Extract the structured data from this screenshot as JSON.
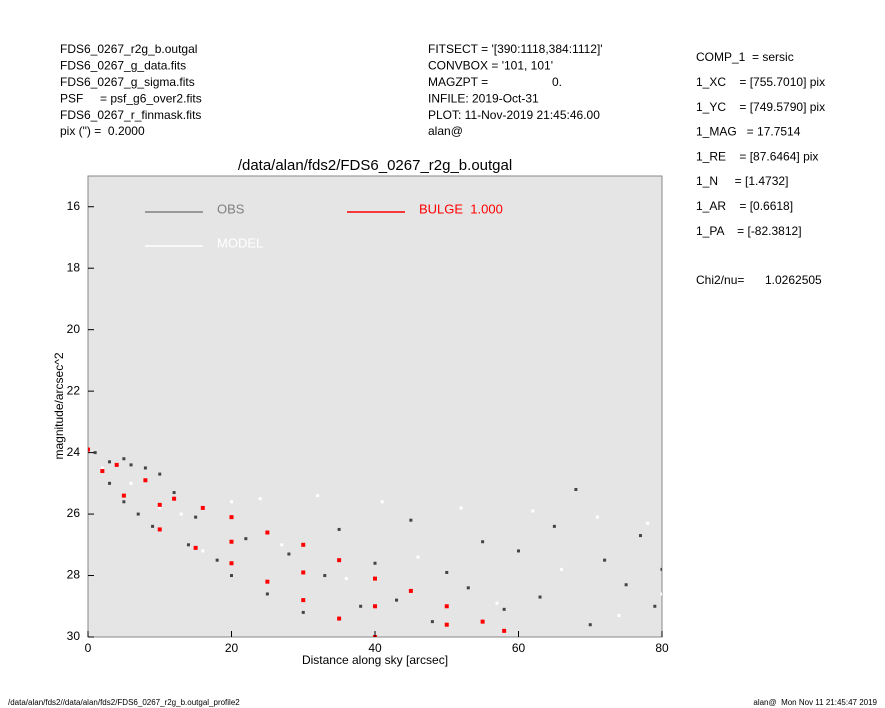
{
  "chart_data": {
    "type": "scatter",
    "title": "/data/alan/fds2/FDS6_0267_r2g_b.outgal",
    "xlabel": "Distance along sky [arcsec]",
    "ylabel": "magnitude/arcsec^2",
    "header_left": [
      "FDS6_0267_r2g_b.outgal",
      "FDS6_0267_g_data.fits",
      "FDS6_0267_g_sigma.fits",
      "PSF     = psf_g6_over2.fits",
      "FDS6_0267_r_finmask.fits",
      "pix (\") =  0.2000"
    ],
    "header_middle": [
      "FITSECT = '[390:1118,384:1112]'",
      "CONVBOX = '101, 101'",
      "MAGZPT =",
      "INFILE: 2019-Oct-31",
      "PLOT: 11-Nov-2019 21:45:46.00",
      "alan@"
    ],
    "magzpt_value": "0.",
    "header_right": [
      "COMP_1  = sersic",
      "1_XC    = [755.7010] pix",
      "1_YC    = [749.5790] pix",
      "1_MAG   = 17.7514",
      "1_RE    = [87.6464] pix",
      "1_N     = [1.4732]",
      "1_AR    = [0.6618]",
      "1_PA    = [-82.3812]"
    ],
    "chi2_label": "Chi2/nu=",
    "chi2_value": "1.0262505",
    "footer_left": "/data/alan/fds2//data/alan/fds2/FDS6_0267_r2g_b.outgal_profile2",
    "footer_right": "alan@  Mon Nov 11 21:45:47 2019",
    "xlim": [
      0,
      80
    ],
    "xticks": [
      0,
      20,
      40,
      60,
      80
    ],
    "ylim": [
      30,
      15
    ],
    "yticks": [
      16,
      18,
      20,
      22,
      24,
      26,
      28,
      30
    ],
    "grid": false,
    "series": [
      {
        "name": "OBS",
        "color": "#444444",
        "legend_color": "#808080",
        "x": [
          1,
          3,
          5,
          6,
          8,
          3,
          5,
          7,
          9,
          10,
          12,
          14,
          15,
          18,
          20,
          22,
          25,
          28,
          30,
          33,
          35,
          38,
          40,
          43,
          45,
          48,
          50,
          53,
          55,
          58,
          60,
          63,
          65,
          68,
          70,
          72,
          75,
          77,
          79,
          80
        ],
        "values": [
          24.0,
          24.3,
          24.2,
          24.4,
          24.5,
          25.0,
          25.6,
          26.0,
          26.4,
          24.7,
          25.3,
          27.0,
          26.1,
          27.5,
          28.0,
          26.8,
          28.6,
          27.3,
          29.2,
          28.0,
          26.5,
          29.0,
          27.6,
          28.8,
          26.2,
          29.5,
          27.9,
          28.4,
          26.9,
          29.1,
          27.2,
          28.7,
          26.4,
          25.2,
          29.6,
          27.5,
          28.3,
          26.7,
          29.0,
          27.8
        ]
      },
      {
        "name": "MODEL",
        "color": "#ffffff",
        "legend_color": "#ffffff",
        "x": [
          2,
          6,
          10,
          13,
          16,
          20,
          24,
          27,
          32,
          36,
          41,
          46,
          52,
          57,
          62,
          66,
          71,
          74,
          78,
          80
        ],
        "values": [
          24.5,
          25.0,
          25.8,
          26.0,
          27.2,
          25.6,
          25.5,
          27.0,
          25.4,
          28.1,
          25.6,
          27.4,
          25.8,
          28.9,
          25.9,
          27.8,
          26.1,
          29.3,
          26.3,
          28.6
        ]
      },
      {
        "name": "BULGE  1.000",
        "color": "#ff0000",
        "legend_color": "#ff0000",
        "x": [
          0,
          4,
          8,
          12,
          16,
          20,
          25,
          30,
          35,
          40,
          45,
          50,
          55,
          58,
          2,
          5,
          10,
          15,
          20,
          25,
          30,
          35,
          40,
          10,
          20,
          30,
          40,
          50
        ],
        "values": [
          23.9,
          24.4,
          24.9,
          25.5,
          25.8,
          26.1,
          26.6,
          27.0,
          27.5,
          28.1,
          28.5,
          29.0,
          29.5,
          29.8,
          24.6,
          25.4,
          26.5,
          27.1,
          27.6,
          28.2,
          28.8,
          29.4,
          30.0,
          25.7,
          26.9,
          27.9,
          29.0,
          29.6
        ]
      }
    ]
  }
}
